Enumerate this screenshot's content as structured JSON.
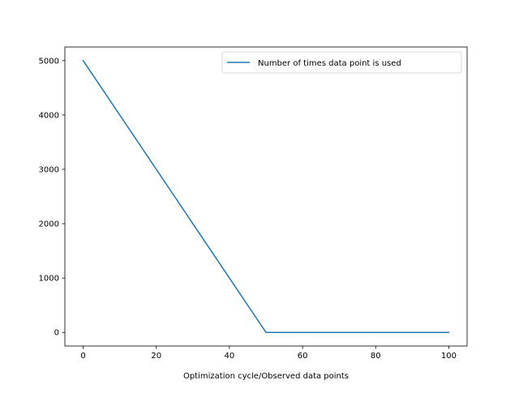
{
  "chart_data": {
    "type": "line",
    "title": "",
    "xlabel": "Optimization cycle/Observed data points",
    "ylabel": "",
    "xlim": [
      -5,
      105
    ],
    "ylim": [
      -250,
      5250
    ],
    "x_ticks": [
      0,
      20,
      40,
      60,
      80,
      100
    ],
    "x_tick_labels": [
      "0",
      "20",
      "40",
      "60",
      "80",
      "100"
    ],
    "y_ticks": [
      0,
      1000,
      2000,
      3000,
      4000,
      5000
    ],
    "y_tick_labels": [
      "0",
      "1000",
      "2000",
      "3000",
      "4000",
      "5000"
    ],
    "grid": false,
    "legend_position": "top-right",
    "series": [
      {
        "name": "Number of times data point is used",
        "color": "#1f77b4",
        "x": [
          0,
          50,
          100
        ],
        "y": [
          5000,
          0,
          0
        ]
      }
    ]
  }
}
